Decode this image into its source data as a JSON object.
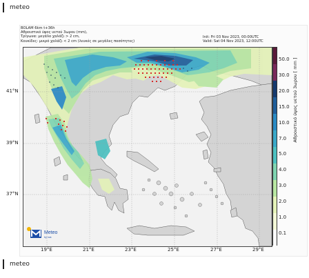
{
  "app": {
    "tag_top": "meteo",
    "tag_bottom": "meteo"
  },
  "header": {
    "left_lines": [
      "BOLAM 6km t+36h",
      "Αθροιστικό ύψος υετού 3ωρου (mm),",
      "Τρίγωνα: μεγάλο χαλάζι > 2 cm,",
      "Κουκίδες: μικρό χαλάζι < 2 cm (λευκές σε μεγάλες ποσότητες)"
    ],
    "init": "Init: Fri 03 Nov 2023, 00:00UTC",
    "valid": "Valid: Sat 04 Nov 2023, 12:00UTC"
  },
  "map": {
    "lat_labels": [
      "41°N",
      "39°N",
      "37°N"
    ],
    "lon_labels": [
      "19°E",
      "21°E",
      "23°E",
      "25°E",
      "27°E",
      "29°E"
    ]
  },
  "colorbar": {
    "ticks": [
      "50.0",
      "30.0",
      "20.0",
      "15.0",
      "10.0",
      "7.0",
      "5.0",
      "4.0",
      "3.0",
      "2.0",
      "1.0",
      "0.1"
    ],
    "title": "Αθροιστικό ύψος υετού 3ωρου [ mm ]",
    "colors": [
      "#5a1b3a",
      "#7a2a5a",
      "#163a6e",
      "#1f5e9a",
      "#2a8ac4",
      "#3aa8c8",
      "#4cc0c0",
      "#7ed4b0",
      "#b8e6a2",
      "#e4f2b8",
      "#f3f8d6",
      "#ffffff"
    ]
  },
  "logo": {
    "mark": "M",
    "name": "Meteo",
    "sub": "by noa"
  },
  "colors": {
    "sea": "#f2f2f2",
    "land": "#d4d4d4",
    "hail": "#d62b2b"
  }
}
